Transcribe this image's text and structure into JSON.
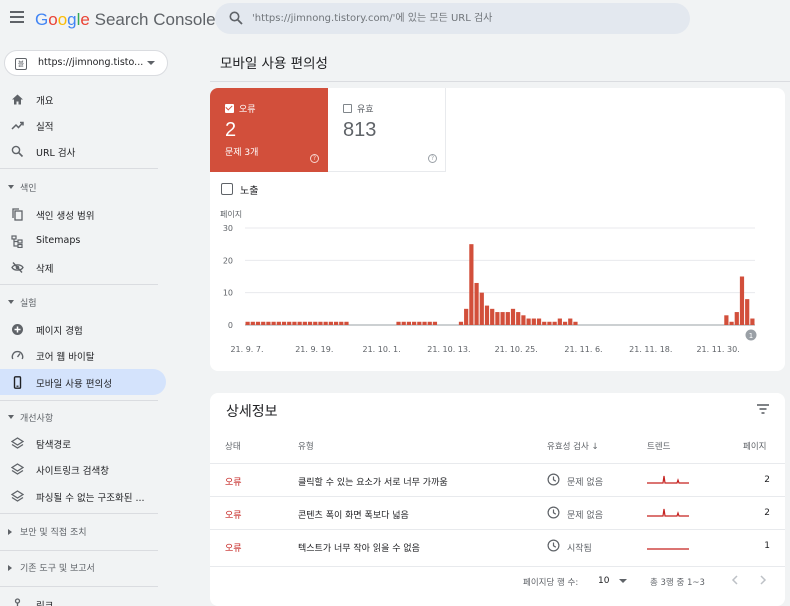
{
  "header": {
    "logo_google": [
      "G",
      "o",
      "o",
      "g",
      "l",
      "e"
    ],
    "product": "Search Console",
    "search_placeholder": "'https://jimnong.tistory.com/'에 있는 모든 URL 검사"
  },
  "property": {
    "icon_text": "블",
    "label": "https://jimnong.tisto..."
  },
  "nav": {
    "overview": "개요",
    "performance": "실적",
    "url_inspection": "URL 검사",
    "index_section": "색인",
    "coverage": "색인 생성 범위",
    "sitemaps": "Sitemaps",
    "removals": "삭제",
    "experience_section": "실험",
    "page_experience": "페이지 경험",
    "core_web_vitals": "코어 웹 바이탈",
    "mobile_usability": "모바일 사용 편의성",
    "enhancements_section": "개선사항",
    "breadcrumbs": "탐색경로",
    "sitelinks_searchbox": "사이트링크 검색창",
    "unparsable": "파싱될 수 없는 구조화된 ...",
    "security_section": "보안 및 직접 조치",
    "legacy_section": "기존 도구 및 보고서",
    "links": "링크"
  },
  "page_title": "모바일 사용 편의성",
  "summary": {
    "error_label": "오류",
    "error_value": "2",
    "error_sub": "문제 3개",
    "valid_label": "유효",
    "valid_value": "813",
    "impressions_label": "노출",
    "help_glyph": "?"
  },
  "chart_data": {
    "type": "bar",
    "ylabel": "페이지",
    "ylim": [
      0,
      30
    ],
    "yticks": [
      "30",
      "20",
      "10",
      "0"
    ],
    "xticks": [
      "21. 9. 7.",
      "21. 9. 19.",
      "21. 10. 1.",
      "21. 10. 13.",
      "21. 10. 25.",
      "21. 11. 6.",
      "21. 11. 18.",
      "21. 11. 30."
    ],
    "annotation": "1",
    "color": "#d24f3b",
    "values": [
      1,
      1,
      1,
      1,
      1,
      1,
      1,
      1,
      1,
      1,
      1,
      1,
      1,
      1,
      1,
      1,
      1,
      1,
      1,
      1,
      0,
      0,
      0,
      0,
      0,
      0,
      0,
      0,
      0,
      1,
      1,
      1,
      1,
      1,
      1,
      1,
      1,
      0,
      0,
      0,
      0,
      1,
      5,
      25,
      13,
      10,
      6,
      5,
      4,
      4,
      4,
      5,
      4,
      3,
      2,
      2,
      2,
      1,
      1,
      1,
      2,
      1,
      2,
      1,
      0,
      0,
      0,
      0,
      0,
      0,
      0,
      0,
      0,
      0,
      0,
      0,
      0,
      0,
      0,
      0,
      0,
      0,
      0,
      0,
      0,
      0,
      0,
      0,
      0,
      0,
      0,
      0,
      3,
      1,
      4,
      15,
      8,
      2
    ]
  },
  "details": {
    "title": "상세정보",
    "columns": {
      "status": "상태",
      "type": "유형",
      "validation": "유효성 검사",
      "trend": "트렌드",
      "pages": "페이지"
    },
    "rows": [
      {
        "status": "오류",
        "type": "클릭할 수 있는 요소가 서로 너무 가까움",
        "validation": "문제 없음",
        "pages": "2"
      },
      {
        "status": "오류",
        "type": "콘텐츠 폭이 화면 폭보다 넓음",
        "validation": "문제 없음",
        "pages": "2"
      },
      {
        "status": "오류",
        "type": "텍스트가 너무 작아 읽을 수 없음",
        "validation": "시작됨",
        "pages": "1"
      }
    ],
    "rows_per_page_label": "페이지당 행 수:",
    "rows_per_page": "10",
    "range": "총 3행 중 1~3"
  },
  "colors": {
    "accent": "#d24f3b",
    "active_nav": "#d4e3fc",
    "error_text": "#c5221f"
  }
}
